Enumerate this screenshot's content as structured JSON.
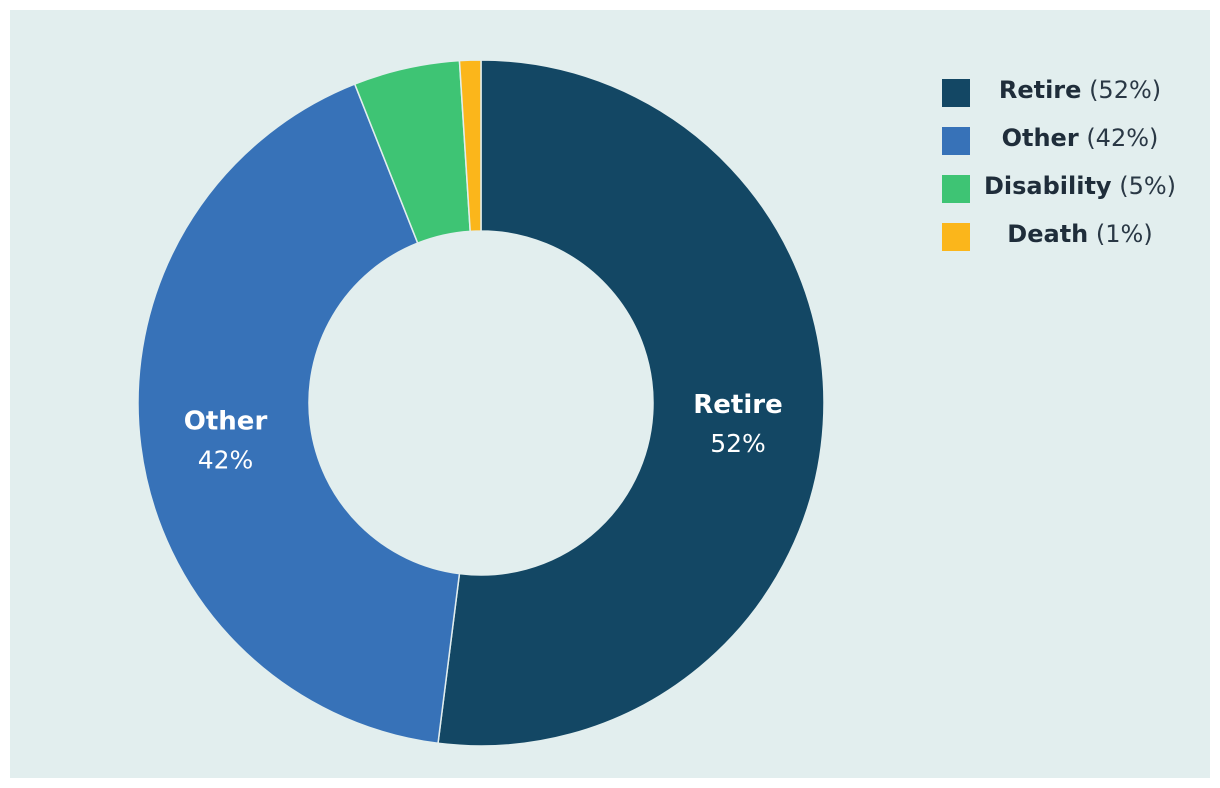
{
  "chart_data": {
    "type": "pie",
    "donut": true,
    "slices": [
      {
        "label": "Retire",
        "value": 52,
        "pct_label": "52%",
        "legend_pct": "(52%)",
        "color": "#134764"
      },
      {
        "label": "Other",
        "value": 42,
        "pct_label": "42%",
        "legend_pct": "(42%)",
        "color": "#3772b8"
      },
      {
        "label": "Disability",
        "value": 5,
        "pct_label": "",
        "legend_pct": "(5%)",
        "color": "#3ec474"
      },
      {
        "label": "Death",
        "value": 1,
        "pct_label": "",
        "legend_pct": "(1%)",
        "color": "#fbb61b"
      }
    ],
    "legend_position": "top-right",
    "background": "#e2eeee"
  }
}
